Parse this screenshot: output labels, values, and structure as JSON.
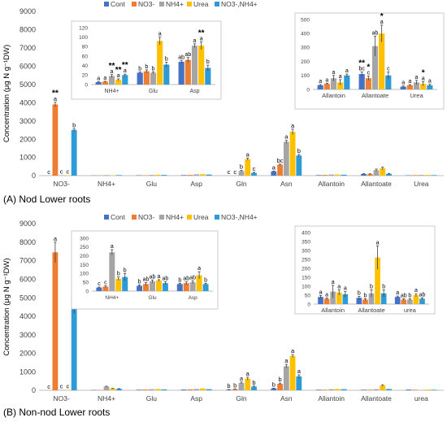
{
  "panels": {
    "a_label": "(A) Nod Lower roots",
    "b_label": "(B) Non-nod Lower roots"
  },
  "colors": {
    "Cont": "#4472C4",
    "NO3-": "#ED7D31",
    "NH4+": "#A5A5A5",
    "Urea": "#FFC000",
    "NO3-,NH4+": "#2E9BD6"
  },
  "chart_data": [
    {
      "id": "A_main",
      "type": "bar",
      "title": "",
      "ylabel": "Concentration (μg N g⁻¹DW)",
      "xlabel": "",
      "ylim": [
        0,
        9000
      ],
      "yticks": [
        0,
        1000,
        2000,
        3000,
        4000,
        5000,
        6000,
        7000,
        8000,
        9000
      ],
      "legend": "top-left",
      "categories": [
        "NO3-",
        "NH4+",
        "Glu",
        "Asp",
        "Gln",
        "Asn",
        "Allantoin",
        "Allantoate",
        "Urea"
      ],
      "series": [
        {
          "name": "Cont",
          "values": [
            0,
            10,
            20,
            30,
            0,
            230,
            30,
            90,
            20
          ],
          "errors": [
            0,
            0,
            0,
            0,
            0,
            20,
            0,
            15,
            0
          ],
          "labels": [
            "c",
            "",
            "",
            "",
            "c",
            "a",
            "",
            "",
            ""
          ]
        },
        {
          "name": "NO3-",
          "values": [
            3900,
            10,
            20,
            40,
            0,
            600,
            40,
            80,
            30
          ],
          "errors": [
            120,
            0,
            0,
            0,
            0,
            30,
            0,
            20,
            0
          ],
          "labels": [
            "a",
            "",
            "",
            "",
            "c",
            "bc",
            "",
            "",
            ""
          ],
          "stars": [
            "**",
            "",
            "",
            "",
            "",
            "",
            "",
            "",
            ""
          ]
        },
        {
          "name": "NH4+",
          "values": [
            20,
            30,
            40,
            70,
            250,
            1850,
            60,
            300,
            40
          ],
          "errors": [
            0,
            0,
            0,
            0,
            40,
            80,
            0,
            60,
            0
          ],
          "labels": [
            "c",
            "",
            "",
            "",
            "b",
            "a",
            "",
            "",
            ""
          ]
        },
        {
          "name": "Urea",
          "values": [
            20,
            20,
            50,
            80,
            900,
            2400,
            60,
            400,
            40
          ],
          "errors": [
            0,
            0,
            0,
            0,
            60,
            150,
            0,
            70,
            0
          ],
          "labels": [
            "c",
            "",
            "",
            "",
            "a",
            "a",
            "",
            "",
            ""
          ]
        },
        {
          "name": "NO3-,NH4+",
          "values": [
            2500,
            30,
            40,
            60,
            150,
            1100,
            50,
            100,
            30
          ],
          "errors": [
            60,
            0,
            0,
            0,
            30,
            60,
            0,
            20,
            0
          ],
          "labels": [
            "b",
            "",
            "",
            "",
            "c",
            "b",
            "",
            "",
            ""
          ]
        }
      ]
    },
    {
      "id": "A_inset1",
      "type": "bar",
      "title": "",
      "ylim": [
        0,
        120
      ],
      "yticks": [
        0,
        20,
        40,
        60,
        80,
        100,
        120
      ],
      "categories": [
        "NH4+",
        "Glu",
        "Asp"
      ],
      "series": [
        {
          "name": "Cont",
          "values": [
            5,
            25,
            48
          ],
          "errors": [
            1,
            2,
            3
          ],
          "labels": [
            "a",
            "b",
            "ab"
          ],
          "stars": [
            "",
            "",
            ""
          ]
        },
        {
          "name": "NO3-",
          "values": [
            6,
            28,
            52
          ],
          "errors": [
            1,
            3,
            5
          ],
          "labels": [
            "a",
            "b",
            "ab"
          ],
          "stars": [
            "",
            "",
            ""
          ]
        },
        {
          "name": "NH4+",
          "values": [
            18,
            25,
            82
          ],
          "errors": [
            3,
            2,
            4
          ],
          "labels": [
            "a",
            "b",
            "a"
          ],
          "stars": [
            "**",
            "",
            ""
          ]
        },
        {
          "name": "Urea",
          "values": [
            10,
            92,
            82
          ],
          "errors": [
            2,
            8,
            8
          ],
          "labels": [
            "a",
            "a",
            "a"
          ],
          "stars": [
            "**",
            "",
            "**"
          ]
        },
        {
          "name": "NO3-,NH4+",
          "values": [
            20,
            42,
            35
          ],
          "errors": [
            2,
            5,
            6
          ],
          "labels": [
            "a",
            "b",
            "b"
          ],
          "stars": [
            "**",
            "",
            ""
          ]
        }
      ]
    },
    {
      "id": "A_inset2",
      "type": "bar",
      "title": "",
      "ylim": [
        0,
        500
      ],
      "yticks": [
        0,
        100,
        200,
        300,
        400,
        500
      ],
      "categories": [
        "Allantoin",
        "Allantoate",
        "Urea"
      ],
      "series": [
        {
          "name": "Cont",
          "values": [
            30,
            110,
            20
          ],
          "errors": [
            5,
            15,
            5
          ],
          "labels": [
            "a",
            "bc",
            "a"
          ],
          "stars": [
            "",
            "**",
            ""
          ]
        },
        {
          "name": "NO3-",
          "values": [
            40,
            80,
            30
          ],
          "errors": [
            5,
            15,
            5
          ],
          "labels": [
            "a",
            "c",
            "a"
          ],
          "stars": [
            "",
            "*",
            ""
          ]
        },
        {
          "name": "NH4+",
          "values": [
            80,
            310,
            50
          ],
          "errors": [
            20,
            70,
            15
          ],
          "labels": [
            "a",
            "ab",
            "a"
          ],
          "stars": [
            "",
            "",
            ""
          ]
        },
        {
          "name": "Urea",
          "values": [
            50,
            400,
            40
          ],
          "errors": [
            20,
            60,
            15
          ],
          "labels": [
            "a",
            "a",
            "a"
          ],
          "stars": [
            "",
            "*",
            "*"
          ]
        },
        {
          "name": "NO3-,NH4+",
          "values": [
            100,
            100,
            30
          ],
          "errors": [
            10,
            25,
            8
          ],
          "labels": [
            "a",
            "c",
            "a"
          ],
          "stars": [
            "",
            "",
            ""
          ]
        }
      ]
    },
    {
      "id": "B_main",
      "type": "bar",
      "title": "",
      "ylabel": "Concentration (μg N g⁻¹DW)",
      "xlabel": "",
      "ylim": [
        0,
        9000
      ],
      "yticks": [
        0,
        1000,
        2000,
        3000,
        4000,
        5000,
        6000,
        7000,
        8000,
        9000
      ],
      "legend": "top-left",
      "categories": [
        "NO3-",
        "NH4+",
        "Glu",
        "Asp",
        "Gln",
        "Asn",
        "Allantoin",
        "Allantoate",
        "urea"
      ],
      "series": [
        {
          "name": "Cont",
          "values": [
            0,
            20,
            30,
            40,
            30,
            100,
            30,
            30,
            40
          ],
          "errors": [
            0,
            0,
            0,
            0,
            10,
            15,
            0,
            0,
            0
          ],
          "labels": [
            "c",
            "",
            "",
            "",
            "b",
            "b",
            "",
            "",
            ""
          ]
        },
        {
          "name": "NO3-",
          "values": [
            7450,
            20,
            40,
            50,
            60,
            350,
            30,
            30,
            30
          ],
          "errors": [
            550,
            0,
            0,
            0,
            15,
            40,
            0,
            0,
            0
          ],
          "labels": [
            "a",
            "",
            "",
            "",
            "b",
            "b",
            "",
            "",
            ""
          ]
        },
        {
          "name": "NH4+",
          "values": [
            20,
            200,
            60,
            70,
            400,
            1300,
            60,
            60,
            20
          ],
          "errors": [
            0,
            20,
            0,
            0,
            50,
            100,
            0,
            0,
            0
          ],
          "labels": [
            "c",
            "",
            "",
            "",
            "a",
            "a",
            "",
            "",
            ""
          ]
        },
        {
          "name": "Urea",
          "values": [
            20,
            100,
            70,
            100,
            630,
            1850,
            70,
            260,
            40
          ],
          "errors": [
            0,
            10,
            0,
            0,
            80,
            80,
            0,
            40,
            0
          ],
          "labels": [
            "c",
            "",
            "",
            "",
            "a",
            "a",
            "",
            "",
            ""
          ]
        },
        {
          "name": "NO3-,NH4+",
          "values": [
            4850,
            80,
            50,
            60,
            200,
            750,
            60,
            70,
            30
          ],
          "errors": [
            700,
            10,
            0,
            0,
            30,
            80,
            0,
            0,
            0
          ],
          "labels": [
            "b",
            "",
            "",
            "",
            "b",
            "a",
            "",
            "",
            ""
          ]
        }
      ]
    },
    {
      "id": "B_inset1",
      "type": "bar",
      "title": "",
      "ylim": [
        0,
        300
      ],
      "yticks": [
        0,
        50,
        100,
        150,
        200,
        250,
        300
      ],
      "categories": [
        "NH4+",
        "Glu",
        "Asp"
      ],
      "series": [
        {
          "name": "Cont",
          "values": [
            20,
            30,
            40
          ],
          "errors": [
            3,
            5,
            5
          ],
          "labels": [
            "c",
            "b",
            "b"
          ]
        },
        {
          "name": "NO3-",
          "values": [
            25,
            40,
            45
          ],
          "errors": [
            5,
            8,
            8
          ],
          "labels": [
            "c",
            "ab",
            "ab"
          ]
        },
        {
          "name": "NH4+",
          "values": [
            220,
            55,
            50
          ],
          "errors": [
            15,
            8,
            8
          ],
          "labels": [
            "a",
            "ab",
            "ab"
          ]
        },
        {
          "name": "Urea",
          "values": [
            70,
            60,
            90
          ],
          "errors": [
            10,
            5,
            20
          ],
          "labels": [
            "b",
            "a",
            "a"
          ]
        },
        {
          "name": "NO3-,NH4+",
          "values": [
            80,
            45,
            40
          ],
          "errors": [
            20,
            8,
            5
          ],
          "labels": [
            "b",
            "ab",
            "b"
          ]
        }
      ]
    },
    {
      "id": "B_inset2",
      "type": "bar",
      "title": "",
      "ylim": [
        0,
        400
      ],
      "yticks": [
        0,
        50,
        100,
        150,
        200,
        250,
        300,
        350,
        400
      ],
      "categories": [
        "Allantoin",
        "Allantoate",
        "urea"
      ],
      "series": [
        {
          "name": "Cont",
          "values": [
            40,
            35,
            40
          ],
          "errors": [
            8,
            8,
            5
          ],
          "labels": [
            "a",
            "b",
            "a"
          ]
        },
        {
          "name": "NO3-",
          "values": [
            30,
            25,
            25
          ],
          "errors": [
            5,
            5,
            5
          ],
          "labels": [
            "a",
            "b",
            "ab"
          ]
        },
        {
          "name": "NH4+",
          "values": [
            70,
            60,
            25
          ],
          "errors": [
            35,
            20,
            5
          ],
          "labels": [
            "a",
            "b",
            "b"
          ]
        },
        {
          "name": "Urea",
          "values": [
            65,
            260,
            50
          ],
          "errors": [
            15,
            65,
            8
          ],
          "labels": [
            "a",
            "a",
            "a"
          ]
        },
        {
          "name": "NO3-,NH4+",
          "values": [
            55,
            60,
            30
          ],
          "errors": [
            15,
            20,
            5
          ],
          "labels": [
            "a",
            "b",
            "ab"
          ]
        }
      ]
    }
  ]
}
